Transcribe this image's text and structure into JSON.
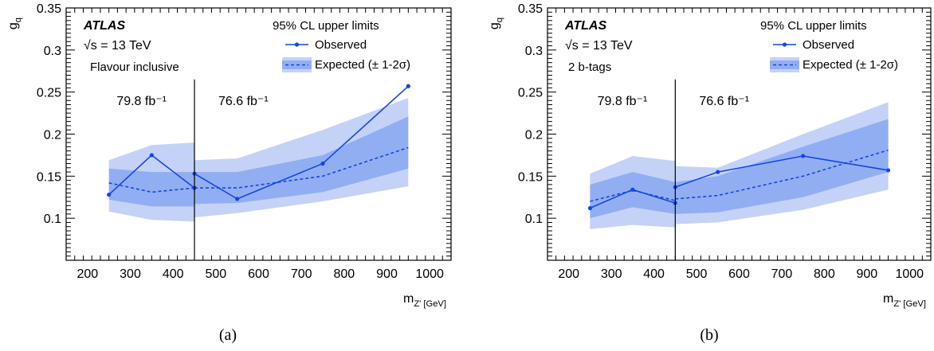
{
  "colors": {
    "band_2sigma": "#c4d2f7",
    "band_1sigma": "#92aef2",
    "observed": "#1346e6",
    "expected": "#1346e6"
  },
  "panel_labels": [
    "(a)",
    "(b)"
  ],
  "chart_data": [
    {
      "type": "line",
      "experiment": "ATLAS",
      "energy": "√s = 13 TeV",
      "selection": "Flavour inclusive",
      "ylabel": "g_q",
      "xlabel": "m_Z' [GeV]",
      "xlim": [
        150,
        1050
      ],
      "ylim": [
        0.05,
        0.35
      ],
      "xticks": [
        200,
        300,
        400,
        500,
        600,
        700,
        800,
        900,
        1000
      ],
      "yticks": [
        0.1,
        0.15,
        0.2,
        0.25,
        0.3,
        0.35
      ],
      "ytick_labels": [
        "0.1",
        "0.15",
        "0.2",
        "0.25",
        "0.3",
        "0.35"
      ],
      "legend": {
        "title": "95% CL upper limits",
        "observed": "Observed",
        "expected": "Expected (± 1-2σ)"
      },
      "divider_x": 450,
      "lumi_left": "79.8 fb⁻¹",
      "lumi_right": "76.6 fb⁻¹",
      "segments": [
        {
          "x": [
            250,
            350,
            450
          ],
          "observed": [
            0.128,
            0.175,
            0.136
          ],
          "expected": [
            0.142,
            0.131,
            0.136
          ],
          "band1_low": [
            0.122,
            0.114,
            0.114
          ],
          "band1_high": [
            0.159,
            0.155,
            0.155
          ],
          "band2_low": [
            0.108,
            0.098,
            0.096
          ],
          "band2_high": [
            0.169,
            0.187,
            0.19
          ]
        },
        {
          "x": [
            450,
            550,
            750,
            950
          ],
          "observed": [
            0.153,
            0.123,
            0.165,
            0.257
          ],
          "expected": [
            0.136,
            0.136,
            0.15,
            0.184
          ],
          "band1_low": [
            0.117,
            0.118,
            0.131,
            0.159
          ],
          "band1_high": [
            0.155,
            0.155,
            0.175,
            0.221
          ],
          "band2_low": [
            0.101,
            0.106,
            0.12,
            0.138
          ],
          "band2_high": [
            0.169,
            0.171,
            0.205,
            0.243
          ]
        }
      ]
    },
    {
      "type": "line",
      "experiment": "ATLAS",
      "energy": "√s = 13 TeV",
      "selection": "2 b-tags",
      "ylabel": "g_q",
      "xlabel": "m_Z' [GeV]",
      "xlim": [
        150,
        1050
      ],
      "ylim": [
        0.05,
        0.35
      ],
      "xticks": [
        200,
        300,
        400,
        500,
        600,
        700,
        800,
        900,
        1000
      ],
      "yticks": [
        0.1,
        0.15,
        0.2,
        0.25,
        0.3,
        0.35
      ],
      "ytick_labels": [
        "0.1",
        "0.15",
        "0.2",
        "0.25",
        "0.3",
        "0.35"
      ],
      "legend": {
        "title": "95% CL upper limits",
        "observed": "Observed",
        "expected": "Expected (± 1-2σ)"
      },
      "divider_x": 450,
      "lumi_left": "79.8 fb⁻¹",
      "lumi_right": "76.6 fb⁻¹",
      "segments": [
        {
          "x": [
            250,
            350,
            450
          ],
          "observed": [
            0.112,
            0.134,
            0.118
          ],
          "expected": [
            0.12,
            0.133,
            0.121
          ],
          "band1_low": [
            0.1,
            0.113,
            0.105
          ],
          "band1_high": [
            0.14,
            0.155,
            0.143
          ],
          "band2_low": [
            0.087,
            0.092,
            0.089
          ],
          "band2_high": [
            0.153,
            0.174,
            0.168
          ]
        },
        {
          "x": [
            450,
            550,
            750,
            950
          ],
          "observed": [
            0.137,
            0.155,
            0.174,
            0.157
          ],
          "expected": [
            0.123,
            0.127,
            0.15,
            0.181
          ],
          "band1_low": [
            0.105,
            0.107,
            0.125,
            0.155
          ],
          "band1_high": [
            0.143,
            0.15,
            0.185,
            0.218
          ],
          "band2_low": [
            0.093,
            0.095,
            0.11,
            0.134
          ],
          "band2_high": [
            0.162,
            0.16,
            0.2,
            0.238
          ]
        }
      ]
    }
  ]
}
